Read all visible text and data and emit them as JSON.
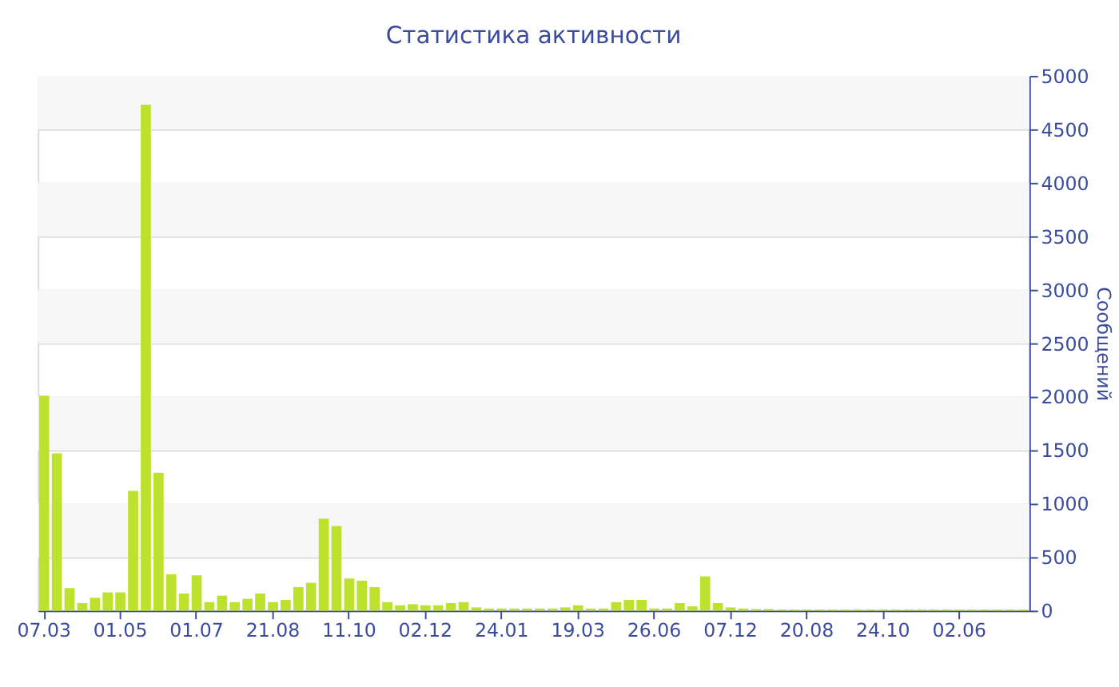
{
  "chart_data": {
    "type": "bar",
    "title": "Статистика активности",
    "y2label": "Сообщений",
    "categories": [
      "07.03",
      null,
      null,
      null,
      null,
      null,
      "01.05",
      null,
      null,
      null,
      null,
      null,
      "01.07",
      null,
      null,
      null,
      null,
      null,
      "21.08",
      null,
      null,
      null,
      null,
      null,
      "11.10",
      null,
      null,
      null,
      null,
      null,
      "02.12",
      null,
      null,
      null,
      null,
      null,
      "24.01",
      null,
      null,
      null,
      null,
      null,
      "19.03",
      null,
      null,
      null,
      null,
      null,
      "26.06",
      null,
      null,
      null,
      null,
      null,
      "07.12",
      null,
      null,
      null,
      null,
      null,
      "20.08",
      null,
      null,
      null,
      null,
      null,
      "24.10",
      null,
      null,
      null,
      null,
      null,
      "02.06",
      null,
      null,
      null,
      null,
      null
    ],
    "series": [
      {
        "color": "#bde22e",
        "axis": "y2",
        "values": [
          2010,
          1470,
          210,
          70,
          120,
          170,
          170,
          1120,
          4730,
          1290,
          340,
          160,
          330,
          80,
          140,
          80,
          110,
          160,
          80,
          100,
          220,
          260,
          860,
          790,
          300,
          280,
          220,
          80,
          50,
          60,
          50,
          50,
          70,
          80,
          30,
          20,
          20,
          20,
          20,
          20,
          20,
          30,
          50,
          20,
          20,
          80,
          100,
          100,
          20,
          20,
          70,
          40,
          320,
          70,
          30,
          20,
          15,
          15,
          10,
          10,
          10,
          10,
          10,
          10,
          10,
          10,
          10,
          10,
          10,
          10,
          10,
          10,
          10,
          10,
          10,
          10,
          10,
          10
        ]
      }
    ],
    "y2lim": [
      0,
      5000
    ],
    "y2ticks": [
      0,
      500,
      1000,
      1500,
      2000,
      2500,
      3000,
      3500,
      4000,
      4500,
      5000
    ],
    "grid": "y"
  }
}
